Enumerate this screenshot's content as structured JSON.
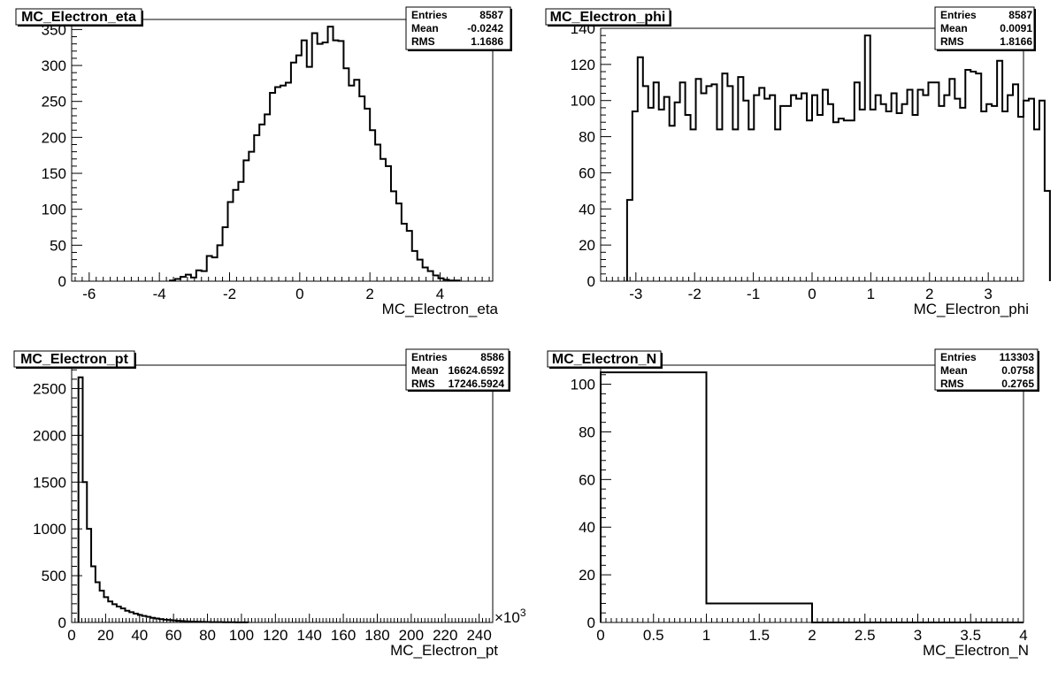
{
  "chart_data": [
    {
      "type": "histogram",
      "title": "MC_Electron_eta",
      "xlabel": "MC_Electron_eta",
      "ylabel": "",
      "xlim": [
        -6.5,
        5.5
      ],
      "ylim": [
        0,
        364
      ],
      "x_ticks": [
        -6,
        -4,
        -2,
        0,
        2,
        4
      ],
      "y_ticks": [
        0,
        50,
        100,
        150,
        200,
        250,
        300,
        350
      ],
      "x_multiplier": "",
      "stats": [
        {
          "label": "Entries",
          "value": "8587"
        },
        {
          "label": "Mean",
          "value": "-0.0242"
        },
        {
          "label": "RMS",
          "value": "1.1686"
        }
      ],
      "bin_edges_start": -3.7,
      "bin_width": 0.15,
      "values": [
        1,
        3,
        6,
        9,
        5,
        15,
        14,
        35,
        33,
        50,
        75,
        110,
        127,
        138,
        168,
        180,
        203,
        218,
        232,
        262,
        270,
        272,
        276,
        304,
        314,
        335,
        298,
        345,
        330,
        332,
        354,
        335,
        334,
        296,
        272,
        280,
        257,
        240,
        210,
        190,
        170,
        160,
        125,
        108,
        80,
        70,
        42,
        30,
        19,
        14,
        8,
        4,
        2,
        1,
        1
      ]
    },
    {
      "type": "histogram",
      "title": "MC_Electron_phi",
      "xlabel": "MC_Electron_phi",
      "ylabel": "",
      "xlim": [
        -3.6,
        3.6
      ],
      "ylim": [
        0,
        140
      ],
      "x_ticks": [
        -3,
        -2,
        -1,
        0,
        1,
        2,
        3
      ],
      "y_ticks": [
        0,
        20,
        40,
        60,
        80,
        100,
        120,
        140
      ],
      "x_multiplier": "",
      "stats": [
        {
          "label": "Entries",
          "value": "8587"
        },
        {
          "label": "Mean",
          "value": "0.0091"
        },
        {
          "label": "RMS",
          "value": "1.8166"
        }
      ],
      "bin_edges_start": -3.15,
      "bin_width": 0.09,
      "values": [
        45,
        94,
        124,
        108,
        96,
        110,
        95,
        102,
        86,
        99,
        110,
        92,
        84,
        112,
        104,
        108,
        109,
        84,
        115,
        108,
        84,
        113,
        100,
        84,
        103,
        107,
        101,
        103,
        84,
        97,
        97,
        103,
        101,
        104,
        89,
        103,
        92,
        106,
        98,
        88,
        90,
        89,
        89,
        110,
        95,
        136,
        95,
        103,
        98,
        94,
        104,
        93,
        98,
        106,
        92,
        106,
        103,
        110,
        110,
        97,
        103,
        112,
        101,
        96,
        117,
        116,
        115,
        94,
        98,
        97,
        122,
        94,
        103,
        109,
        91,
        100,
        101,
        84,
        100,
        50
      ]
    },
    {
      "type": "histogram",
      "title": "MC_Electron_pt",
      "xlabel": "MC_Electron_pt",
      "ylabel": "",
      "xlim": [
        0,
        248
      ],
      "ylim": [
        0,
        2750
      ],
      "x_ticks": [
        0,
        20,
        40,
        60,
        80,
        100,
        120,
        140,
        160,
        180,
        200,
        220,
        240
      ],
      "y_ticks": [
        0,
        500,
        1000,
        1500,
        2000,
        2500
      ],
      "x_multiplier": "×10",
      "x_multiplier_exp": "3",
      "stats": [
        {
          "label": "Entries",
          "value": "8586"
        },
        {
          "label": "Mean",
          "value": "16624.6592"
        },
        {
          "label": "RMS",
          "value": "17246.5924"
        }
      ],
      "bin_edges_start": 4,
      "bin_width": 2.5,
      "values": [
        2620,
        1500,
        1000,
        600,
        430,
        340,
        270,
        225,
        195,
        170,
        150,
        125,
        110,
        95,
        80,
        70,
        60,
        50,
        42,
        35,
        30,
        26,
        22,
        18,
        15,
        12,
        10,
        8,
        7,
        6,
        5,
        4,
        3,
        3,
        2,
        2,
        2,
        1,
        1,
        1
      ]
    },
    {
      "type": "histogram",
      "title": "MC_Electron_N",
      "xlabel": "MC_Electron_N",
      "ylabel": "",
      "xlim": [
        0,
        4
      ],
      "ylim": [
        0,
        108
      ],
      "x_ticks": [
        0,
        0.5,
        1,
        1.5,
        2,
        2.5,
        3,
        3.5,
        4
      ],
      "y_ticks": [
        0,
        20,
        40,
        60,
        80,
        100
      ],
      "x_multiplier": "",
      "stats": [
        {
          "label": "Entries",
          "value": "113303"
        },
        {
          "label": "Mean",
          "value": "0.0758"
        },
        {
          "label": "RMS",
          "value": "0.2765"
        }
      ],
      "bin_edges_start": 0,
      "bin_width": 1,
      "values": [
        105,
        8,
        0,
        0
      ]
    }
  ]
}
